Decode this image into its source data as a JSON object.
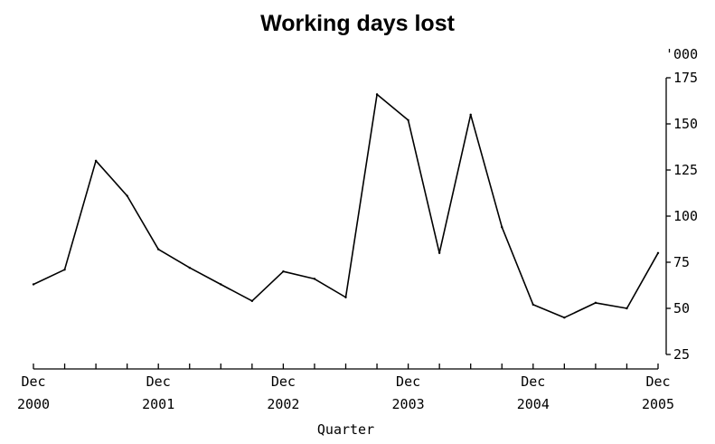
{
  "chart_data": {
    "type": "line",
    "title": "Working days lost",
    "xlabel": "Quarter",
    "ylabel": "'000",
    "ylim": [
      25,
      175
    ],
    "yticks": [
      25,
      50,
      75,
      100,
      125,
      150,
      175
    ],
    "x_tick_labels": [
      {
        "month": "Dec",
        "year": "2000"
      },
      {
        "month": "Dec",
        "year": "2001"
      },
      {
        "month": "Dec",
        "year": "2002"
      },
      {
        "month": "Dec",
        "year": "2003"
      },
      {
        "month": "Dec",
        "year": "2004"
      },
      {
        "month": "Dec",
        "year": "2005"
      }
    ],
    "grid": false,
    "x": [
      "Dec 2000",
      "Mar 2001",
      "Jun 2001",
      "Sep 2001",
      "Dec 2001",
      "Mar 2002",
      "Jun 2002",
      "Sep 2002",
      "Dec 2002",
      "Mar 2003",
      "Jun 2003",
      "Sep 2003",
      "Dec 2003",
      "Mar 2004",
      "Jun 2004",
      "Sep 2004",
      "Dec 2004",
      "Mar 2005",
      "Jun 2005",
      "Sep 2005",
      "Dec 2005"
    ],
    "series": [
      {
        "values": [
          63,
          71,
          130,
          111,
          82,
          72,
          63,
          54,
          70,
          66,
          56,
          166,
          152,
          80,
          155,
          94,
          52,
          45,
          53,
          50,
          80
        ]
      }
    ]
  }
}
